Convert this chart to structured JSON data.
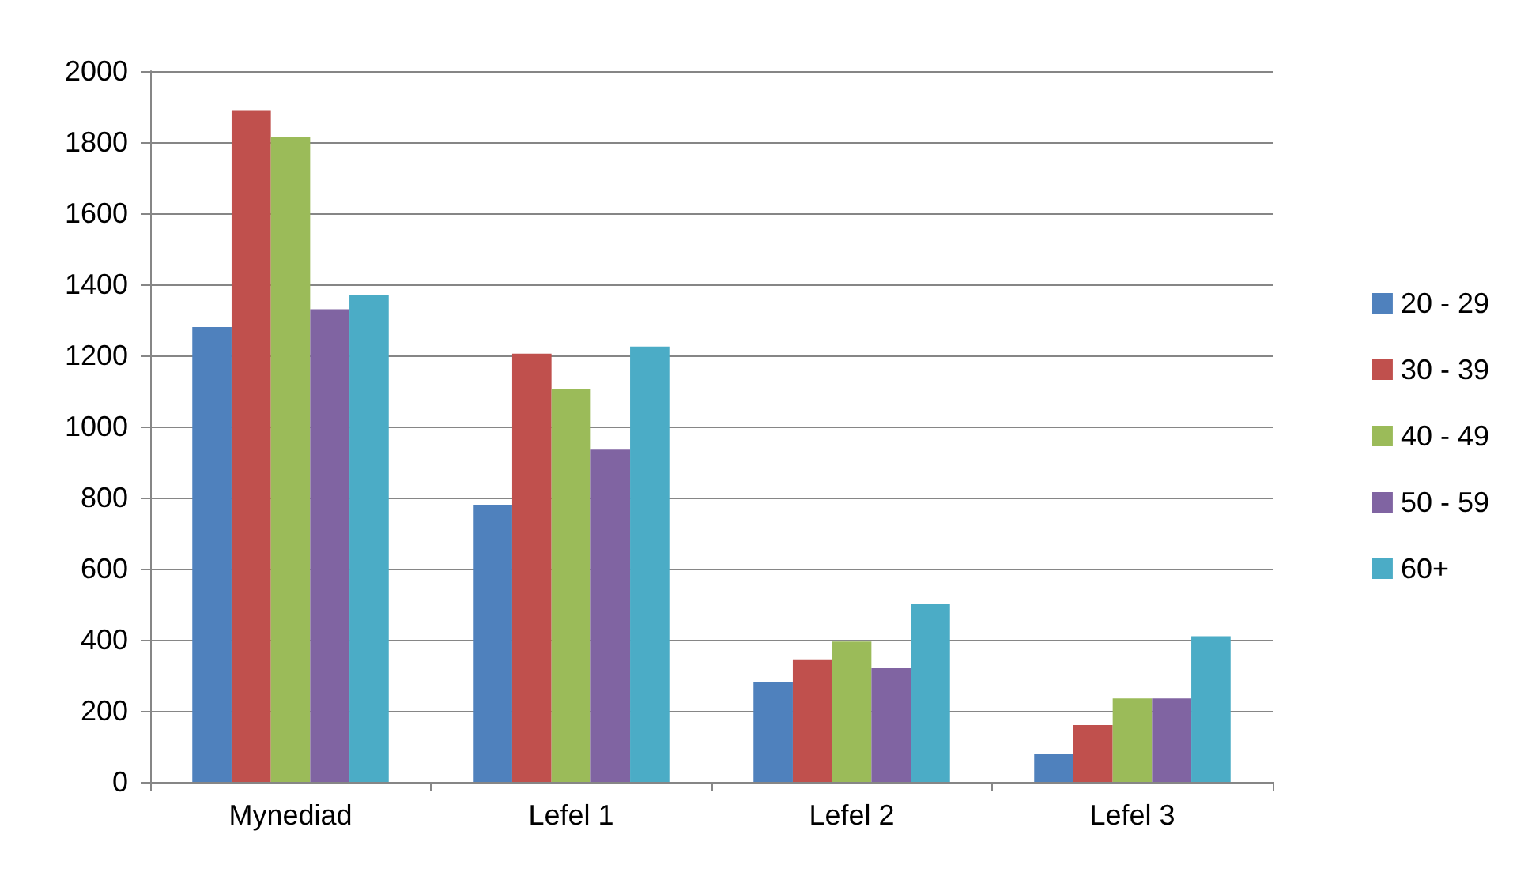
{
  "chart_data": {
    "type": "bar",
    "categories": [
      "Mynediad",
      "Lefel 1",
      "Lefel 2",
      "Lefel 3"
    ],
    "series": [
      {
        "name": "20 - 29",
        "color": "#4f81bd",
        "values": [
          1280,
          780,
          280,
          80
        ]
      },
      {
        "name": "30 - 39",
        "color": "#c0504d",
        "values": [
          1890,
          1205,
          345,
          160
        ]
      },
      {
        "name": "40 - 49",
        "color": "#9bbb59",
        "values": [
          1815,
          1105,
          395,
          235
        ]
      },
      {
        "name": "50 - 59",
        "color": "#8064a2",
        "values": [
          1330,
          935,
          320,
          235
        ]
      },
      {
        "name": "60+",
        "color": "#4bacc6",
        "values": [
          1370,
          1225,
          500,
          410
        ]
      }
    ],
    "ylim": [
      0,
      2000
    ],
    "yticks": [
      0,
      200,
      400,
      600,
      800,
      1000,
      1200,
      1400,
      1600,
      1800,
      2000
    ],
    "grid": "y",
    "legend": "right"
  }
}
